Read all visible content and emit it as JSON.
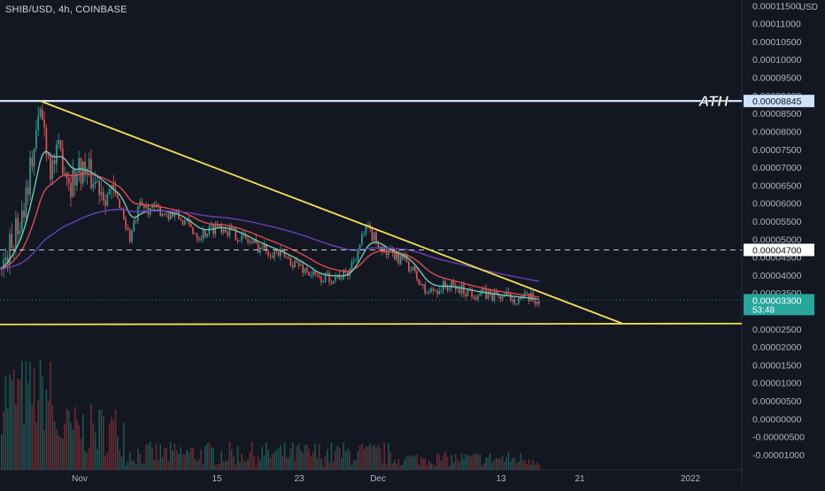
{
  "header": {
    "symbol_line": "SHIB/USD, 4h, COINBASE",
    "currency": "USD"
  },
  "annotation": {
    "ath_label": "ATH"
  },
  "price_axis": {
    "ticks": [
      "0.00011500",
      "0.00011000",
      "0.00010500",
      "0.00010000",
      "0.00009500",
      "0.00009000",
      "0.00008500",
      "0.00008000",
      "0.00007500",
      "0.00007000",
      "0.00006500",
      "0.00006000",
      "0.00005500",
      "0.00005000",
      "0.00004500",
      "0.00004000",
      "0.00003500",
      "0.00003000",
      "0.00002500",
      "0.00002000",
      "0.00001500",
      "0.00001000",
      "0.00000500",
      "0.00000000",
      "-0.00000500",
      "-0.00001000"
    ],
    "ath_tag": "0.00008845",
    "line_tag": "0.00004700",
    "last_price_tag": "0.00003300",
    "countdown": "53:48"
  },
  "time_axis": {
    "labels": [
      "Nov",
      "15",
      "23",
      "Dec",
      "13",
      "21",
      "2022"
    ]
  },
  "colors": {
    "background": "#131722",
    "up": "#26a69a",
    "down": "#ef5350",
    "ema_fast": "#6fc7b3",
    "ema_slow": "#e04a4a",
    "sma_long": "#6a3fb5",
    "trend": "#f3e24a",
    "ath_line": "#cfe3ff",
    "last_tag": "#26a69a"
  },
  "chart_data": {
    "type": "candlestick",
    "title": "SHIB/USD, 4h, COINBASE",
    "y_unit": "USD",
    "ylim": [
      -1.25e-05,
      0.000116
    ],
    "x_ticks": [
      "Nov",
      "15",
      "23",
      "Dec",
      "13",
      "21",
      "2022"
    ],
    "ath": 8.845e-05,
    "horizontal_level": 4.7e-05,
    "last_price": 3.3e-05,
    "support_level": 2.65e-05,
    "trendline": {
      "from": {
        "x": "Oct 28",
        "y": 8.845e-05
      },
      "to": {
        "x": "Dec 25",
        "y": 2.65e-05
      }
    },
    "price_path": [
      [
        "Oct 20",
        2.95e-05
      ],
      [
        "Oct 24",
        4.2e-05
      ],
      [
        "Oct 26",
        5.6e-05
      ],
      [
        "Oct 28",
        8.6e-05
      ],
      [
        "Oct 29",
        7e-05
      ],
      [
        "Oct 30",
        7.4e-05
      ],
      [
        "Oct 31",
        6.6e-05
      ],
      [
        "Nov 1",
        7e-05
      ],
      [
        "Nov 3",
        6.5e-05
      ],
      [
        "Nov 5",
        6e-05
      ],
      [
        "Nov 6",
        5e-05
      ],
      [
        "Nov 7",
        5.9e-05
      ],
      [
        "Nov 9",
        5.8e-05
      ],
      [
        "Nov 11",
        5.6e-05
      ],
      [
        "Nov 13",
        5.1e-05
      ],
      [
        "Nov 15",
        5.4e-05
      ],
      [
        "Nov 17",
        5.1e-05
      ],
      [
        "Nov 19",
        4.8e-05
      ],
      [
        "Nov 21",
        4.6e-05
      ],
      [
        "Nov 23",
        4.3e-05
      ],
      [
        "Nov 25",
        3.9e-05
      ],
      [
        "Nov 28",
        4e-05
      ],
      [
        "Nov 30",
        5.3e-05
      ],
      [
        "Dec 1",
        4.6e-05
      ],
      [
        "Dec 3",
        4.4e-05
      ],
      [
        "Dec 5",
        3.5e-05
      ],
      [
        "Dec 7",
        3.7e-05
      ],
      [
        "Dec 10",
        3.5e-05
      ],
      [
        "Dec 13",
        3.4e-05
      ],
      [
        "Dec 15",
        3.35e-05
      ],
      [
        "Dec 16",
        3.3e-05
      ]
    ]
  }
}
